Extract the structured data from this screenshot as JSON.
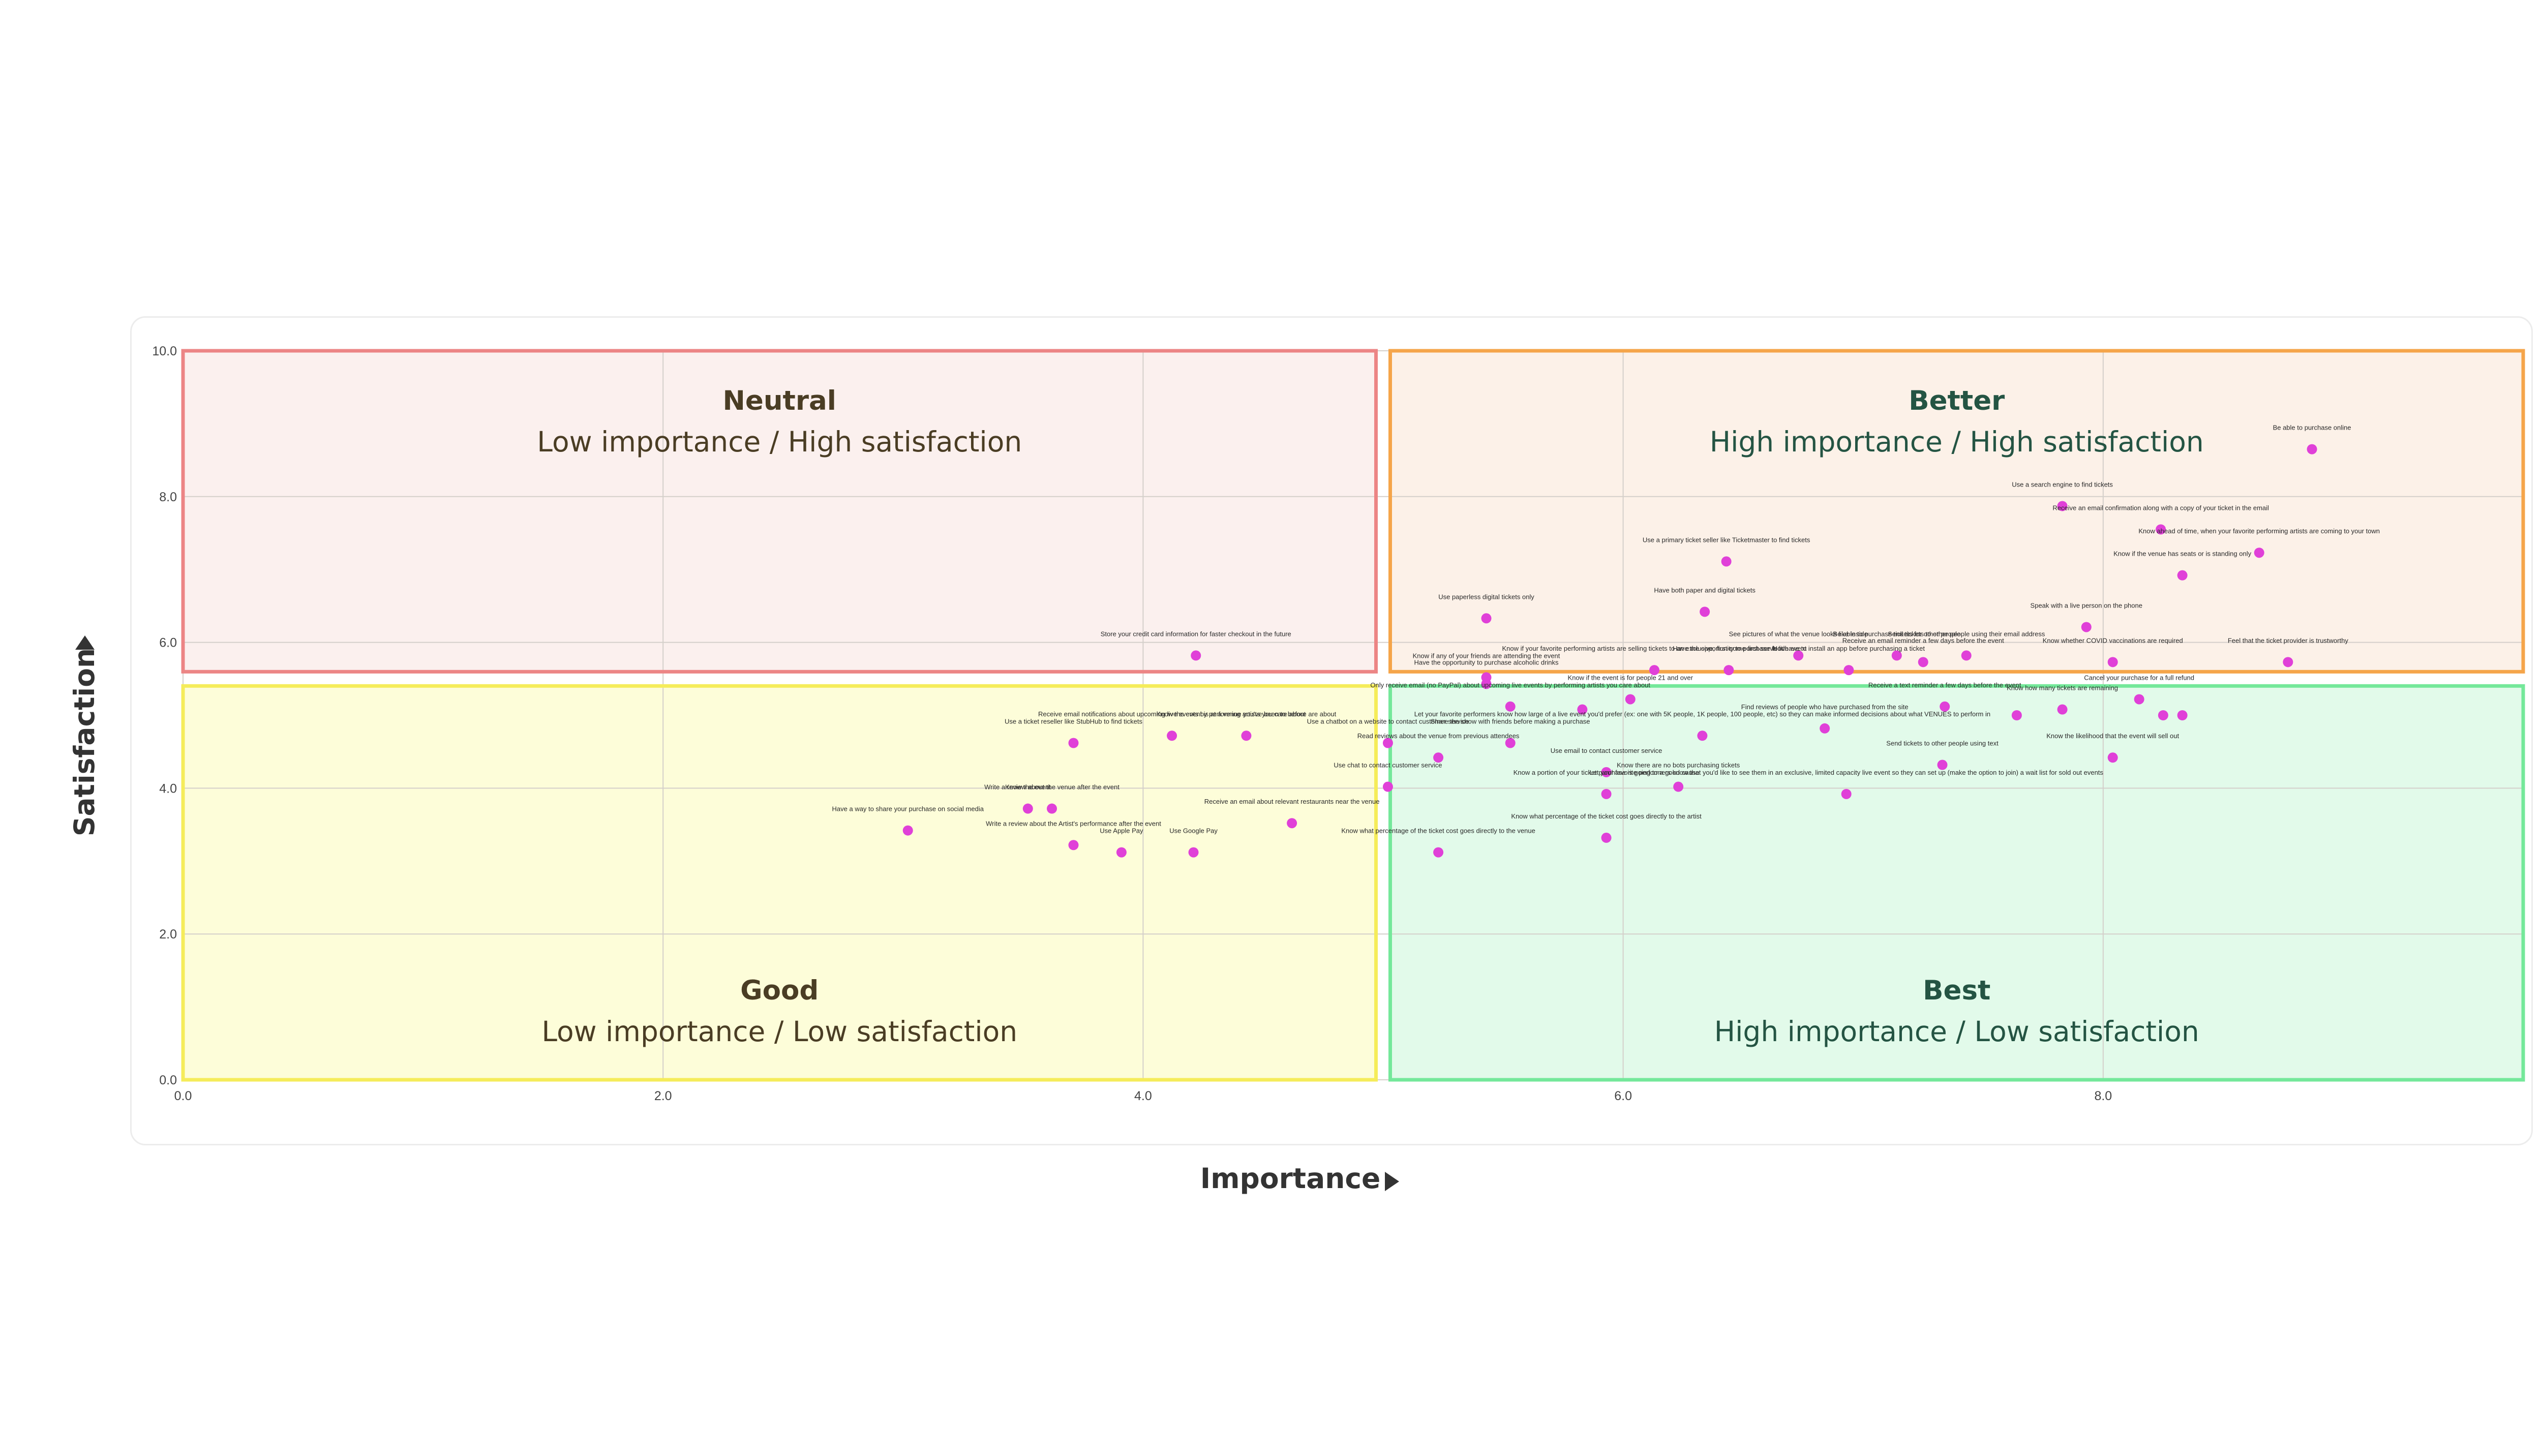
{
  "chart_data": {
    "type": "scatter",
    "xlabel": "Importance",
    "ylabel": "Satisfaction",
    "xlim": [
      0,
      9.75
    ],
    "ylim": [
      0,
      10
    ],
    "x_ticks": [
      "0.0",
      "2.0",
      "4.0",
      "6.0",
      "8.0"
    ],
    "y_ticks": [
      "0.0",
      "2.0",
      "4.0",
      "6.0",
      "8.0",
      "10.0"
    ],
    "grid": true,
    "marker_color": "#e040d8",
    "quadrants": [
      {
        "key": "neutral",
        "title": "Neutral",
        "subtitle": [
          "Low importance",
          "High satisfaction"
        ],
        "x_range": [
          0,
          5
        ],
        "y_range": [
          5.5,
          10
        ],
        "fill": "#fbf0ee",
        "border": "#ec8585",
        "title_color": "#4a3d24",
        "sub_color": "#4a3d24"
      },
      {
        "key": "better",
        "title": "Better",
        "subtitle": [
          "High importance",
          "High satisfaction"
        ],
        "x_range": [
          5,
          9.75
        ],
        "y_range": [
          5.5,
          10
        ],
        "fill": "#fcf1e8",
        "border": "#f5a54a",
        "title_color": "#245443",
        "sub_color": "#245443"
      },
      {
        "key": "good",
        "title": "Good",
        "subtitle": [
          "Low importance",
          "Low satisfaction"
        ],
        "x_range": [
          0,
          5
        ],
        "y_range": [
          0,
          5.5
        ],
        "fill": "#fdfdd9",
        "border": "#f5ec5a",
        "title_color": "#4a3d24",
        "sub_color": "#4a3d24"
      },
      {
        "key": "best",
        "title": "Best",
        "subtitle": [
          "High importance",
          "Low satisfaction"
        ],
        "x_range": [
          5,
          9.75
        ],
        "y_range": [
          0,
          5.5
        ],
        "fill": "#e2faea",
        "border": "#74e89a",
        "title_color": "#245443",
        "sub_color": "#245443"
      }
    ],
    "points": [
      {
        "label": "Be able to purchase online",
        "x": 8.87,
        "y": 8.65
      },
      {
        "label": "Use a search engine to find tickets",
        "x": 7.83,
        "y": 7.87
      },
      {
        "label": "Receive an email confirmation along with a copy of your ticket in the email",
        "x": 8.24,
        "y": 7.55
      },
      {
        "label": "Know ahead of time, when your favorite performing artists are coming to your town",
        "x": 8.65,
        "y": 7.23
      },
      {
        "label": "Know if the venue has seats or is standing only",
        "x": 8.33,
        "y": 6.92
      },
      {
        "label": "Use a primary ticket seller like Ticketmaster to find tickets",
        "x": 6.43,
        "y": 7.11
      },
      {
        "label": "Have both paper and digital tickets",
        "x": 6.34,
        "y": 6.42
      },
      {
        "label": "Use paperless digital tickets only",
        "x": 5.43,
        "y": 6.33
      },
      {
        "label": "Speak with a live person on the phone",
        "x": 7.93,
        "y": 6.21
      },
      {
        "label": "Store your credit card information for faster checkout in the future",
        "x": 4.22,
        "y": 5.82
      },
      {
        "label": "Feel that the ticket provider is trustworthy",
        "x": 8.77,
        "y": 5.73
      },
      {
        "label": "Know whether COVID vaccinations are required",
        "x": 8.04,
        "y": 5.73
      },
      {
        "label": "See pictures of what the venue looks like inside",
        "x": 6.73,
        "y": 5.82
      },
      {
        "label": "Send tickets to other people using their email address",
        "x": 7.43,
        "y": 5.82
      },
      {
        "label": "Be able to purchase tickets for other people",
        "x": 7.14,
        "y": 5.82
      },
      {
        "label": "Receive an email reminder a few days before the event",
        "x": 7.25,
        "y": 5.73
      },
      {
        "label": "Not have to install an app before purchasing a ticket",
        "x": 6.94,
        "y": 5.62
      },
      {
        "label": "Have the opportunity to purchase food",
        "x": 6.44,
        "y": 5.62
      },
      {
        "label": "Know if your favorite performing artists are selling tickets to an exclusive, first-come-first-serve live event",
        "x": 6.13,
        "y": 5.62
      },
      {
        "label": "Know if any of your friends are attending the event",
        "x": 5.43,
        "y": 5.52
      },
      {
        "label": "Have the opportunity to purchase alcoholic drinks",
        "x": 5.43,
        "y": 5.43
      },
      {
        "label": "Know if the event is for people 21 and over",
        "x": 6.03,
        "y": 5.22
      },
      {
        "label": "Cancel your purchase for a full refund",
        "x": 8.15,
        "y": 5.22
      },
      {
        "label": "Only receive email (no PayPal) about upcoming live events by performing artists you care about",
        "x": 5.53,
        "y": 5.12
      },
      {
        "label": "Receive a text reminder a few days before the event",
        "x": 7.34,
        "y": 5.12
      },
      {
        "label": "Know how many tickets are remaining",
        "x": 7.83,
        "y": 5.08
      },
      {
        "label": "",
        "x": 5.83,
        "y": 5.08
      },
      {
        "label": "",
        "x": 7.64,
        "y": 5.0
      },
      {
        "label": "",
        "x": 8.25,
        "y": 5.0
      },
      {
        "label": "",
        "x": 8.33,
        "y": 5.0
      },
      {
        "label": "Receive email notifications about upcoming live events by performing artists you care about",
        "x": 4.12,
        "y": 4.72
      },
      {
        "label": "Know the event is at a venue you've been to before are about",
        "x": 4.43,
        "y": 4.72
      },
      {
        "label": "Use a ticket reseller like StubHub to find tickets",
        "x": 3.71,
        "y": 4.62
      },
      {
        "label": "Let your favorite performers know how large of a live event you'd prefer (ex: one with 5K people, 1K people, 100 people, etc) so they can make informed decisions about what VENUES to perform in",
        "x": 6.33,
        "y": 4.72
      },
      {
        "label": "Share the show with friends before making a purchase",
        "x": 5.53,
        "y": 4.62
      },
      {
        "label": "Use a chatbot on a website to contact customer service",
        "x": 5.02,
        "y": 4.62
      },
      {
        "label": "Find reviews of people who have purchased from the site",
        "x": 6.84,
        "y": 4.82
      },
      {
        "label": "Know the likelihood that the event will sell out",
        "x": 8.04,
        "y": 4.42
      },
      {
        "label": "Read reviews about the venue from previous attendees",
        "x": 5.23,
        "y": 4.42
      },
      {
        "label": "Send tickets to other people using text",
        "x": 7.33,
        "y": 4.32
      },
      {
        "label": "Use email to contact customer service",
        "x": 5.93,
        "y": 4.22
      },
      {
        "label": "Know there are no bots purchasing tickets",
        "x": 6.23,
        "y": 4.02
      },
      {
        "label": "Let your favorite performers know that you'd like to see them in an exclusive, limited capacity live event so they can set up (make the option to join) a wait list for sold out events",
        "x": 6.93,
        "y": 3.92
      },
      {
        "label": "Know a portion of your ticket purchase is going to a good cause",
        "x": 5.93,
        "y": 3.92
      },
      {
        "label": "Use chat to contact customer service",
        "x": 5.02,
        "y": 4.02
      },
      {
        "label": "Receive an email about relevant restaurants near the venue",
        "x": 4.62,
        "y": 3.52
      },
      {
        "label": "Know the event",
        "x": 3.52,
        "y": 3.72
      },
      {
        "label": "Write a review about the venue after the event",
        "x": 3.62,
        "y": 3.72
      },
      {
        "label": "Have a way to share your purchase on social media",
        "x": 3.02,
        "y": 3.42
      },
      {
        "label": "Write a review about the Artist's performance after the event",
        "x": 3.71,
        "y": 3.22
      },
      {
        "label": "Use Apple Pay",
        "x": 3.91,
        "y": 3.12
      },
      {
        "label": "Use Google Pay",
        "x": 4.21,
        "y": 3.12
      },
      {
        "label": "Know what percentage of the ticket cost goes directly to the artist",
        "x": 5.93,
        "y": 3.32
      },
      {
        "label": "Know what percentage of the ticket cost goes directly to the venue",
        "x": 5.23,
        "y": 3.12
      }
    ]
  }
}
